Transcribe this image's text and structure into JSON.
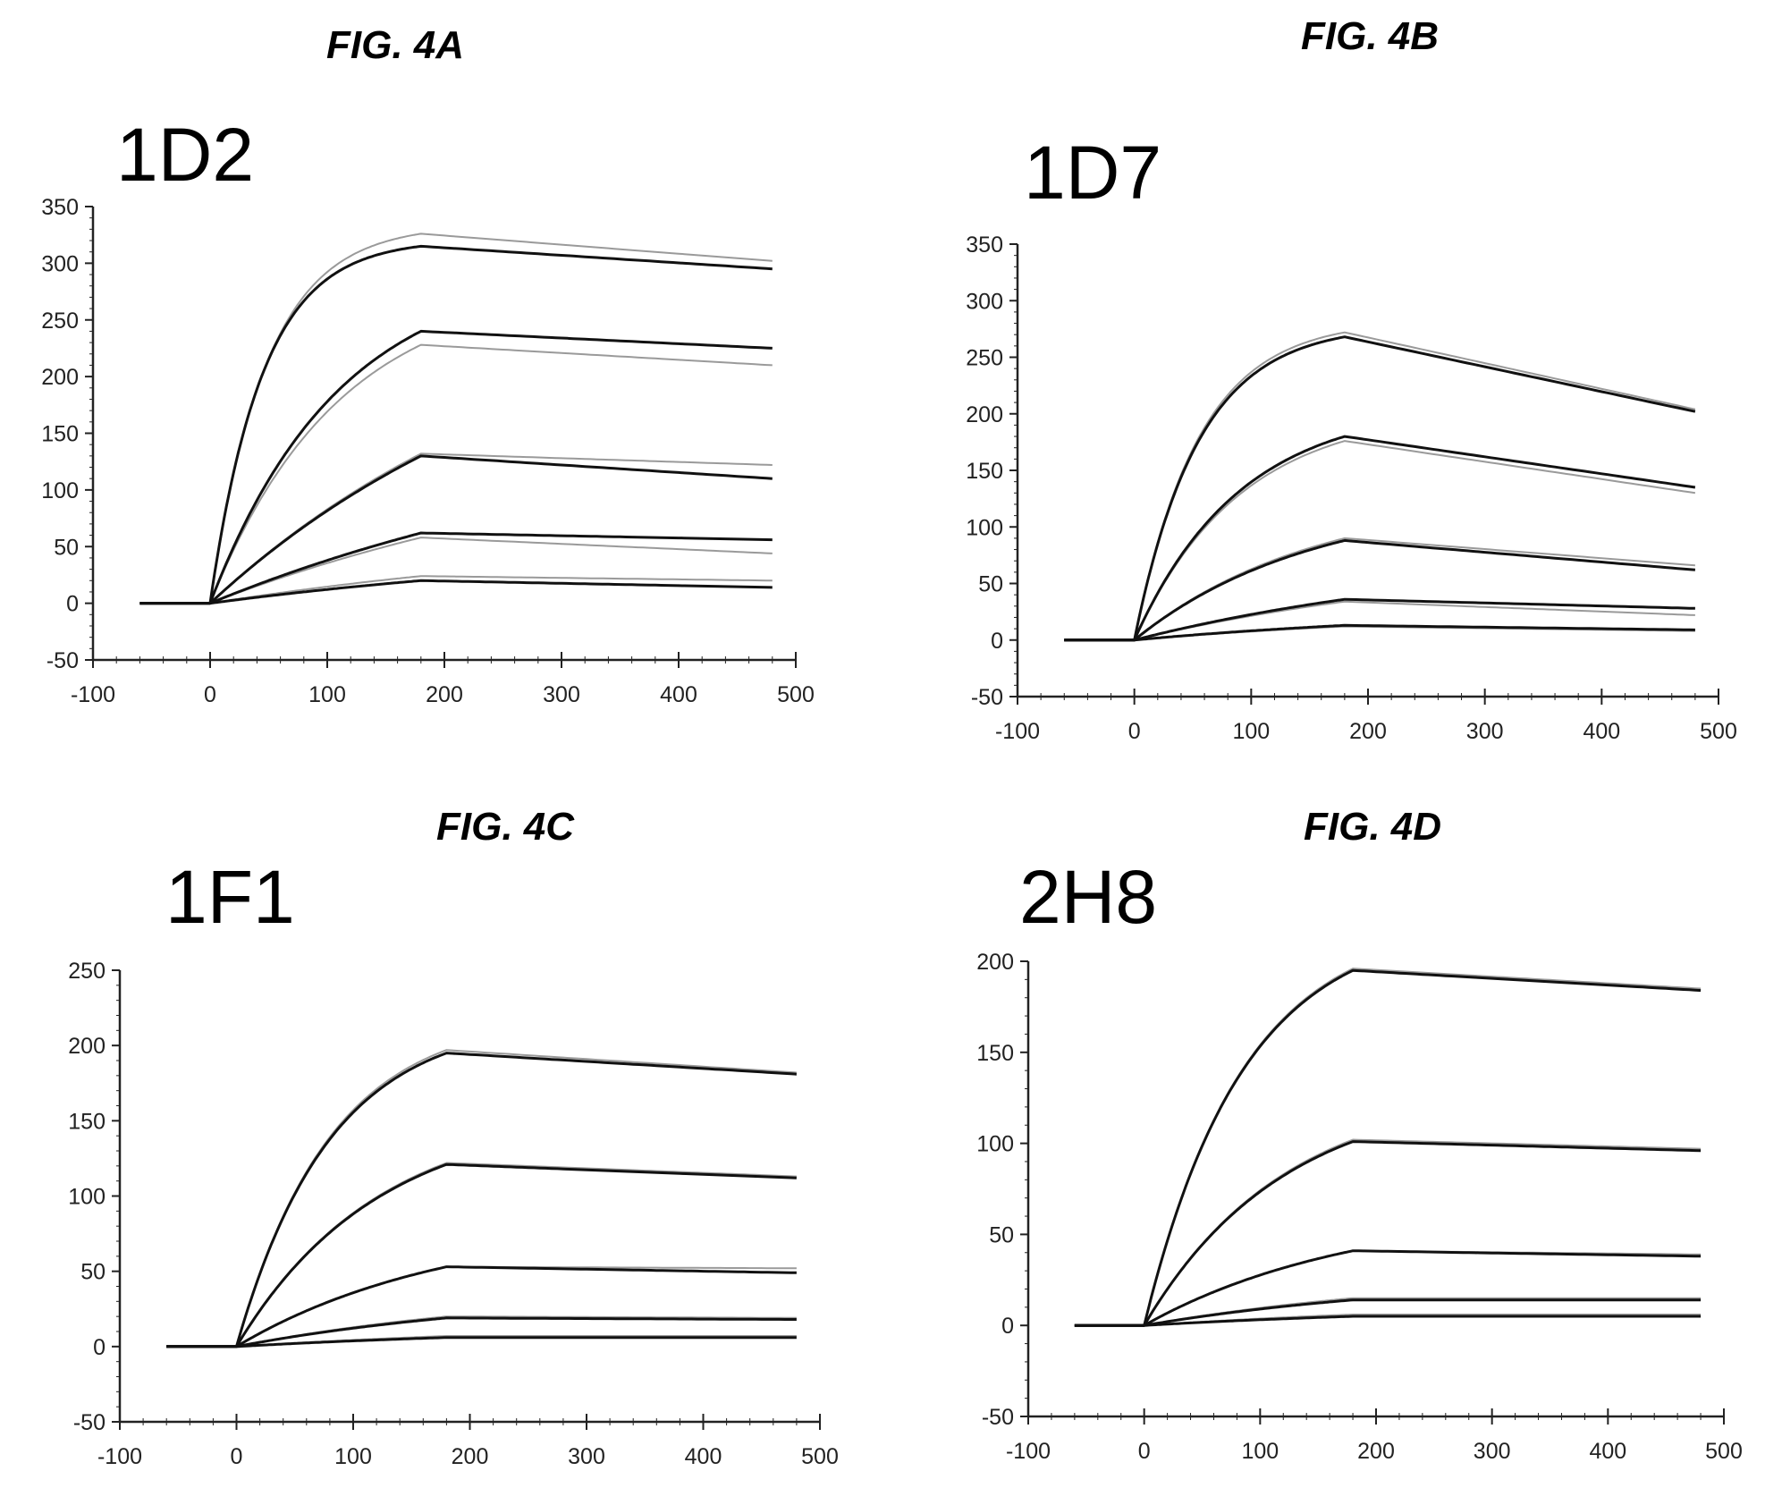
{
  "chart_data": [
    {
      "type": "line",
      "figure": "FIG. 4A",
      "title": "1D2",
      "xlabel": "",
      "ylabel": "",
      "xlim": [
        -100,
        500
      ],
      "ylim": [
        -50,
        350
      ],
      "xticks": [
        -100,
        0,
        100,
        200,
        300,
        400,
        500
      ],
      "yticks": [
        -50,
        0,
        50,
        100,
        150,
        200,
        250,
        300,
        350
      ],
      "grid": false,
      "association_end": 180,
      "baseline_start": -60,
      "end_time": 480,
      "series": [
        {
          "role": "measured",
          "tau": 45,
          "peak": 315,
          "end": 295
        },
        {
          "role": "fit",
          "tau": 48,
          "peak": 326,
          "end": 302
        },
        {
          "role": "measured",
          "tau": 110,
          "peak": 240,
          "end": 225
        },
        {
          "role": "fit",
          "tau": 110,
          "peak": 228,
          "end": 210
        },
        {
          "role": "measured",
          "tau": 300,
          "peak": 130,
          "end": 110
        },
        {
          "role": "fit",
          "tau": 300,
          "peak": 132,
          "end": 122
        },
        {
          "role": "measured",
          "tau": 400,
          "peak": 62,
          "end": 56
        },
        {
          "role": "fit",
          "tau": 400,
          "peak": 58,
          "end": 44
        },
        {
          "role": "measured",
          "tau": 400,
          "peak": 20,
          "end": 14
        },
        {
          "role": "fit",
          "tau": 400,
          "peak": 24,
          "end": 20
        }
      ]
    },
    {
      "type": "line",
      "figure": "FIG. 4B",
      "title": "1D7",
      "xlabel": "",
      "ylabel": "",
      "xlim": [
        -100,
        500
      ],
      "ylim": [
        -50,
        350
      ],
      "xticks": [
        -100,
        0,
        100,
        200,
        300,
        400,
        500
      ],
      "yticks": [
        -50,
        0,
        50,
        100,
        150,
        200,
        250,
        300,
        350
      ],
      "grid": false,
      "association_end": 180,
      "baseline_start": -60,
      "end_time": 480,
      "series": [
        {
          "role": "measured",
          "tau": 55,
          "peak": 268,
          "end": 202
        },
        {
          "role": "fit",
          "tau": 55,
          "peak": 272,
          "end": 204
        },
        {
          "role": "measured",
          "tau": 90,
          "peak": 180,
          "end": 135
        },
        {
          "role": "fit",
          "tau": 90,
          "peak": 176,
          "end": 130
        },
        {
          "role": "measured",
          "tau": 150,
          "peak": 88,
          "end": 62
        },
        {
          "role": "fit",
          "tau": 150,
          "peak": 90,
          "end": 66
        },
        {
          "role": "measured",
          "tau": 300,
          "peak": 36,
          "end": 28
        },
        {
          "role": "fit",
          "tau": 300,
          "peak": 34,
          "end": 22
        },
        {
          "role": "measured",
          "tau": 300,
          "peak": 13,
          "end": 9
        },
        {
          "role": "fit",
          "tau": 300,
          "peak": 12,
          "end": 8
        }
      ]
    },
    {
      "type": "line",
      "figure": "FIG. 4C",
      "title": "1F1",
      "xlabel": "",
      "ylabel": "",
      "xlim": [
        -100,
        500
      ],
      "ylim": [
        -50,
        250
      ],
      "xticks": [
        -100,
        0,
        100,
        200,
        300,
        400,
        500
      ],
      "yticks": [
        -50,
        0,
        50,
        100,
        150,
        200,
        250
      ],
      "grid": false,
      "association_end": 180,
      "baseline_start": -60,
      "end_time": 480,
      "series": [
        {
          "role": "measured",
          "tau": 80,
          "peak": 195,
          "end": 181
        },
        {
          "role": "fit",
          "tau": 80,
          "peak": 197,
          "end": 182
        },
        {
          "role": "measured",
          "tau": 120,
          "peak": 121,
          "end": 112
        },
        {
          "role": "fit",
          "tau": 120,
          "peak": 122,
          "end": 113
        },
        {
          "role": "measured",
          "tau": 180,
          "peak": 53,
          "end": 49
        },
        {
          "role": "fit",
          "tau": 180,
          "peak": 53,
          "end": 52
        },
        {
          "role": "measured",
          "tau": 250,
          "peak": 19,
          "end": 18
        },
        {
          "role": "fit",
          "tau": 250,
          "peak": 20,
          "end": 19
        },
        {
          "role": "measured",
          "tau": 300,
          "peak": 6,
          "end": 6
        },
        {
          "role": "fit",
          "tau": 300,
          "peak": 7,
          "end": 7
        }
      ]
    },
    {
      "type": "line",
      "figure": "FIG. 4D",
      "title": "2H8",
      "xlabel": "",
      "ylabel": "",
      "xlim": [
        -100,
        500
      ],
      "ylim": [
        -50,
        200
      ],
      "xticks": [
        -100,
        0,
        100,
        200,
        300,
        400,
        500
      ],
      "yticks": [
        -50,
        0,
        50,
        100,
        150,
        200
      ],
      "grid": false,
      "association_end": 180,
      "baseline_start": -60,
      "end_time": 480,
      "series": [
        {
          "role": "measured",
          "tau": 85,
          "peak": 195,
          "end": 184
        },
        {
          "role": "fit",
          "tau": 85,
          "peak": 196,
          "end": 185
        },
        {
          "role": "measured",
          "tau": 120,
          "peak": 101,
          "end": 96
        },
        {
          "role": "fit",
          "tau": 120,
          "peak": 102,
          "end": 97
        },
        {
          "role": "measured",
          "tau": 180,
          "peak": 41,
          "end": 38
        },
        {
          "role": "fit",
          "tau": 180,
          "peak": 41,
          "end": 39
        },
        {
          "role": "measured",
          "tau": 250,
          "peak": 14,
          "end": 14
        },
        {
          "role": "fit",
          "tau": 250,
          "peak": 15,
          "end": 15
        },
        {
          "role": "measured",
          "tau": 300,
          "peak": 5,
          "end": 5
        },
        {
          "role": "fit",
          "tau": 300,
          "peak": 6,
          "end": 6
        }
      ]
    }
  ],
  "colors": {
    "measured": "#111111",
    "fit": "#9a9a9a",
    "axis": "#222222"
  }
}
